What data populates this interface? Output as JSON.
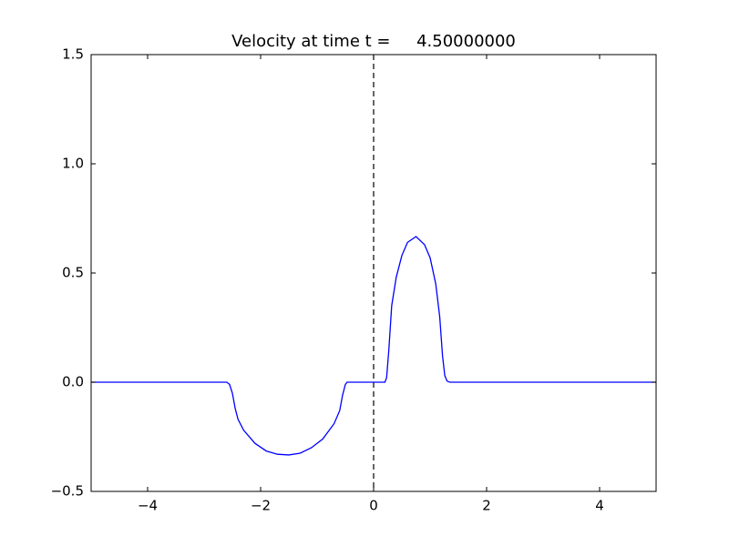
{
  "chart_data": {
    "type": "line",
    "title": "Velocity at time t =     4.50000000",
    "x": [
      -5,
      -2.6,
      -2.55,
      -2.5,
      -2.45,
      -2.4,
      -2.3,
      -2.1,
      -1.9,
      -1.7,
      -1.5,
      -1.3,
      -1.1,
      -0.9,
      -0.7,
      -0.6,
      -0.55,
      -0.5,
      -0.47,
      0.2,
      0.23,
      0.27,
      0.32,
      0.4,
      0.5,
      0.6,
      0.75,
      0.9,
      1.0,
      1.1,
      1.17,
      1.22,
      1.26,
      1.3,
      1.35,
      5
    ],
    "values": [
      0,
      0,
      -0.01,
      -0.05,
      -0.12,
      -0.17,
      -0.22,
      -0.28,
      -0.315,
      -0.33,
      -0.333,
      -0.325,
      -0.3,
      -0.26,
      -0.19,
      -0.13,
      -0.06,
      -0.01,
      0,
      0,
      0.02,
      0.15,
      0.35,
      0.48,
      0.58,
      0.64,
      0.667,
      0.63,
      0.57,
      0.45,
      0.3,
      0.12,
      0.03,
      0.005,
      0,
      0
    ],
    "color": "#0000ff",
    "vline_x": 0,
    "xlim": [
      -5,
      5
    ],
    "xticks": [
      {
        "value": -4,
        "label": "−4"
      },
      {
        "value": -2,
        "label": "−2"
      },
      0,
      2,
      4
    ],
    "ylim": [
      -0.5,
      1.5
    ],
    "yticks": [
      {
        "value": -0.5,
        "label": "−0.5"
      },
      {
        "value": 0,
        "label": "0.0"
      },
      0.5,
      {
        "value": 1,
        "label": "1.0"
      },
      1.5
    ]
  }
}
